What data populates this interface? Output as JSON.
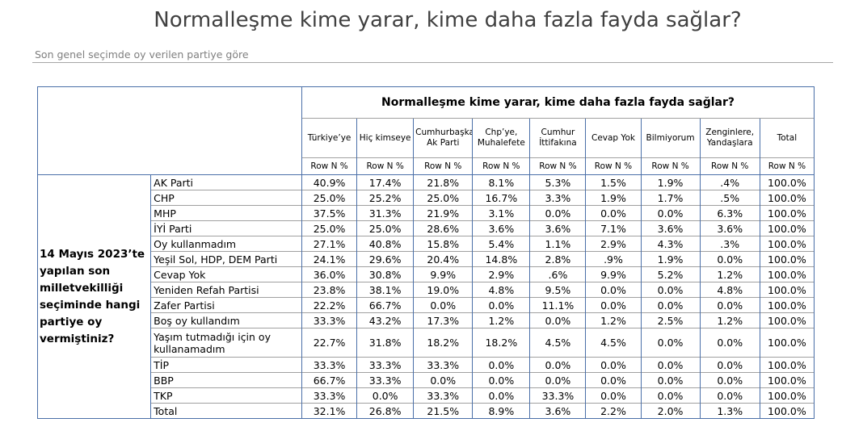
{
  "page": {
    "title": "Normalleşme kime yarar, kime daha fazla fayda sağlar?",
    "subtitle": "Son genel seçimde oy verilen partiye göre"
  },
  "table": {
    "header_title": "Normalleşme kime yarar, kime daha fazla fayda sağlar?",
    "row_question": "14 Mayıs 2023’te yapılan son milletvekilliği seçiminde hangi partiye oy vermiştiniz?",
    "columns": [
      "Türkiye’ye",
      "Hiç kimseye",
      "Cumhurbaşkanı, Ak Parti",
      "Chp’ye, Muhalefete",
      "Cumhur İttifakına",
      "Cevap Yok",
      "Bilmiyorum",
      "Zenginlere, Yandaşlara",
      "Total"
    ],
    "subheader": "Row N %",
    "rows": [
      {
        "party": "AK Parti",
        "values": [
          "40.9%",
          "17.4%",
          "21.8%",
          "8.1%",
          "5.3%",
          "1.5%",
          "1.9%",
          ".4%",
          "100.0%"
        ]
      },
      {
        "party": "CHP",
        "values": [
          "25.0%",
          "25.2%",
          "25.0%",
          "16.7%",
          "3.3%",
          "1.9%",
          "1.7%",
          ".5%",
          "100.0%"
        ]
      },
      {
        "party": "MHP",
        "values": [
          "37.5%",
          "31.3%",
          "21.9%",
          "3.1%",
          "0.0%",
          "0.0%",
          "0.0%",
          "6.3%",
          "100.0%"
        ]
      },
      {
        "party": "İYİ Parti",
        "values": [
          "25.0%",
          "25.0%",
          "28.6%",
          "3.6%",
          "3.6%",
          "7.1%",
          "3.6%",
          "3.6%",
          "100.0%"
        ]
      },
      {
        "party": "Oy kullanmadım",
        "values": [
          "27.1%",
          "40.8%",
          "15.8%",
          "5.4%",
          "1.1%",
          "2.9%",
          "4.3%",
          ".3%",
          "100.0%"
        ]
      },
      {
        "party": "Yeşil Sol, HDP, DEM Parti",
        "values": [
          "24.1%",
          "29.6%",
          "20.4%",
          "14.8%",
          "2.8%",
          ".9%",
          "1.9%",
          "0.0%",
          "100.0%"
        ]
      },
      {
        "party": "Cevap Yok",
        "values": [
          "36.0%",
          "30.8%",
          "9.9%",
          "2.9%",
          ".6%",
          "9.9%",
          "5.2%",
          "1.2%",
          "100.0%"
        ]
      },
      {
        "party": "Yeniden Refah Partisi",
        "values": [
          "23.8%",
          "38.1%",
          "19.0%",
          "4.8%",
          "9.5%",
          "0.0%",
          "0.0%",
          "4.8%",
          "100.0%"
        ]
      },
      {
        "party": "Zafer Partisi",
        "values": [
          "22.2%",
          "66.7%",
          "0.0%",
          "0.0%",
          "11.1%",
          "0.0%",
          "0.0%",
          "0.0%",
          "100.0%"
        ]
      },
      {
        "party": "Boş oy kullandım",
        "values": [
          "33.3%",
          "43.2%",
          "17.3%",
          "1.2%",
          "0.0%",
          "1.2%",
          "2.5%",
          "1.2%",
          "100.0%"
        ]
      },
      {
        "party": "Yaşım tutmadığı için oy kullanamadım",
        "values": [
          "22.7%",
          "31.8%",
          "18.2%",
          "18.2%",
          "4.5%",
          "4.5%",
          "0.0%",
          "0.0%",
          "100.0%"
        ]
      },
      {
        "party": "TİP",
        "values": [
          "33.3%",
          "33.3%",
          "33.3%",
          "0.0%",
          "0.0%",
          "0.0%",
          "0.0%",
          "0.0%",
          "100.0%"
        ]
      },
      {
        "party": "BBP",
        "values": [
          "66.7%",
          "33.3%",
          "0.0%",
          "0.0%",
          "0.0%",
          "0.0%",
          "0.0%",
          "0.0%",
          "100.0%"
        ]
      },
      {
        "party": "TKP",
        "values": [
          "33.3%",
          "0.0%",
          "33.3%",
          "0.0%",
          "33.3%",
          "0.0%",
          "0.0%",
          "0.0%",
          "100.0%"
        ]
      },
      {
        "party": "Total",
        "values": [
          "32.1%",
          "26.8%",
          "21.5%",
          "8.9%",
          "3.6%",
          "2.2%",
          "2.0%",
          "1.3%",
          "100.0%"
        ]
      }
    ]
  }
}
